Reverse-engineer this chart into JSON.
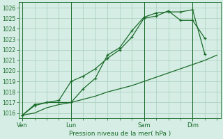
{
  "xlabel": "Pression niveau de la mer( hPa )",
  "bg_color": "#d5ede4",
  "grid_color": "#a8ccbc",
  "line_color": "#1a6b2a",
  "ylim": [
    1015.5,
    1026.5
  ],
  "xlim": [
    -0.3,
    16.3
  ],
  "day_labels": [
    "Ven",
    "Lun",
    "Sam",
    "Dim"
  ],
  "day_positions": [
    0,
    4,
    10,
    14
  ],
  "minor_xticks": [
    0,
    1,
    2,
    3,
    4,
    5,
    6,
    7,
    8,
    9,
    10,
    11,
    12,
    13,
    14,
    15,
    16
  ],
  "series1_x": [
    0,
    1,
    2,
    3,
    4,
    5,
    6,
    7,
    8,
    9,
    10,
    11,
    12,
    13,
    14,
    15
  ],
  "series1_y": [
    1015.8,
    1016.8,
    1017.0,
    1017.0,
    1017.0,
    1018.3,
    1019.3,
    1021.5,
    1022.2,
    1023.8,
    1025.1,
    1025.5,
    1025.6,
    1025.6,
    1025.8,
    1021.6
  ],
  "series2_x": [
    0,
    1,
    2,
    3,
    4,
    5,
    6,
    7,
    8,
    9,
    10,
    11,
    12,
    13,
    14,
    15
  ],
  "series2_y": [
    1015.8,
    1016.7,
    1017.0,
    1017.2,
    1019.0,
    1019.5,
    1020.2,
    1021.2,
    1022.0,
    1023.2,
    1025.0,
    1025.2,
    1025.7,
    1024.8,
    1024.8,
    1023.1
  ],
  "series3_x": [
    0,
    1,
    2,
    3,
    4,
    5,
    6,
    7,
    8,
    9,
    10,
    11,
    12,
    13,
    14,
    15,
    16
  ],
  "series3_y": [
    1015.8,
    1016.0,
    1016.5,
    1016.8,
    1017.0,
    1017.3,
    1017.6,
    1018.0,
    1018.3,
    1018.6,
    1019.0,
    1019.4,
    1019.8,
    1020.2,
    1020.6,
    1021.0,
    1021.5
  ],
  "yticks": [
    1016,
    1017,
    1018,
    1019,
    1020,
    1021,
    1022,
    1023,
    1024,
    1025,
    1026
  ]
}
